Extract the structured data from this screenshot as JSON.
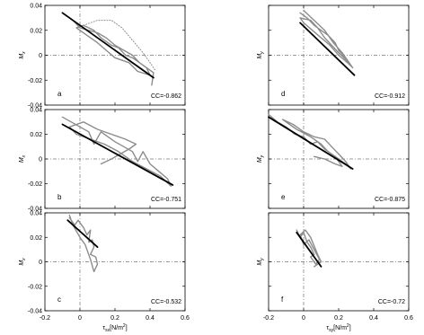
{
  "chart_data": [
    {
      "type": "line",
      "panel": "a",
      "cc_label": "CC=-0.862",
      "xlim": [
        -0.2,
        0.6
      ],
      "ylim": [
        -0.04,
        0.04
      ],
      "ylabel": "M_x",
      "ylabel_main": "M",
      "ylabel_sub": "x",
      "xticks": [],
      "yticks": [
        "-0.04",
        "-0.02",
        "0",
        "0.02",
        "0.04"
      ],
      "series": [
        {
          "role": "observed",
          "style": "solid",
          "points": [
            [
              -0.08,
              0.032
            ],
            [
              -0.04,
              0.028
            ],
            [
              0.0,
              0.022
            ],
            [
              0.05,
              0.02
            ],
            [
              0.1,
              0.018
            ],
            [
              0.15,
              0.014
            ],
            [
              0.2,
              0.008
            ],
            [
              0.25,
              0.004
            ],
            [
              0.3,
              0.0
            ],
            [
              0.34,
              -0.006
            ],
            [
              0.38,
              -0.01
            ],
            [
              0.4,
              -0.016
            ],
            [
              0.33,
              -0.013
            ],
            [
              0.28,
              -0.006
            ],
            [
              0.2,
              -0.002
            ],
            [
              0.15,
              0.004
            ],
            [
              0.1,
              0.01
            ],
            [
              0.04,
              0.016
            ],
            [
              -0.02,
              0.022
            ],
            [
              0.02,
              0.024
            ],
            [
              0.08,
              0.02
            ],
            [
              0.12,
              0.014
            ],
            [
              0.18,
              0.008
            ],
            [
              0.22,
              0.006
            ],
            [
              0.26,
              0.0
            ],
            [
              0.3,
              -0.002
            ],
            [
              0.36,
              -0.008
            ],
            [
              0.42,
              -0.014
            ],
            [
              0.41,
              -0.024
            ]
          ]
        },
        {
          "role": "observed-dotted",
          "style": "dotted",
          "points": [
            [
              0.02,
              0.024
            ],
            [
              0.1,
              0.028
            ],
            [
              0.18,
              0.028
            ],
            [
              0.24,
              0.022
            ],
            [
              0.3,
              0.012
            ],
            [
              0.36,
              0.002
            ],
            [
              0.4,
              -0.006
            ],
            [
              0.43,
              -0.012
            ]
          ]
        },
        {
          "role": "fit",
          "style": "thick",
          "points": [
            [
              -0.1,
              0.034
            ],
            [
              0.42,
              -0.018
            ]
          ]
        }
      ]
    },
    {
      "type": "line",
      "panel": "b",
      "cc_label": "CC=-0.751",
      "xlim": [
        -0.2,
        0.6
      ],
      "ylim": [
        -0.04,
        0.04
      ],
      "ylabel": "M_x",
      "ylabel_main": "M",
      "ylabel_sub": "x",
      "xticks": [],
      "yticks": [
        "-0.04",
        "-0.02",
        "0",
        "0.02",
        "0.04"
      ],
      "series": [
        {
          "role": "observed",
          "style": "solid",
          "points": [
            [
              -0.1,
              0.034
            ],
            [
              -0.05,
              0.03
            ],
            [
              0.0,
              0.026
            ],
            [
              0.05,
              0.022
            ],
            [
              0.08,
              0.012
            ],
            [
              0.12,
              0.022
            ],
            [
              0.16,
              0.018
            ],
            [
              0.2,
              0.014
            ],
            [
              0.25,
              0.01
            ],
            [
              0.3,
              0.006
            ],
            [
              0.33,
              -0.002
            ],
            [
              0.36,
              0.006
            ],
            [
              0.4,
              -0.004
            ],
            [
              0.45,
              -0.01
            ],
            [
              0.5,
              -0.016
            ],
            [
              0.52,
              -0.022
            ],
            [
              0.46,
              -0.014
            ],
            [
              0.38,
              -0.008
            ],
            [
              0.3,
              -0.002
            ],
            [
              0.22,
              0.006
            ],
            [
              0.14,
              0.012
            ],
            [
              0.06,
              0.016
            ],
            [
              -0.02,
              0.02
            ],
            [
              -0.06,
              0.026
            ],
            [
              0.02,
              0.03
            ],
            [
              0.1,
              0.024
            ],
            [
              0.18,
              0.02
            ],
            [
              0.26,
              0.016
            ],
            [
              0.32,
              0.012
            ],
            [
              0.28,
              0.008
            ],
            [
              0.18,
              0.0
            ],
            [
              0.12,
              -0.004
            ]
          ]
        },
        {
          "role": "fit",
          "style": "thick",
          "points": [
            [
              -0.1,
              0.028
            ],
            [
              0.53,
              -0.021
            ]
          ]
        }
      ]
    },
    {
      "type": "line",
      "panel": "c",
      "cc_label": "CC=-0.532",
      "xlim": [
        -0.2,
        0.6
      ],
      "ylim": [
        -0.04,
        0.04
      ],
      "ylabel": "M_x",
      "ylabel_main": "M",
      "ylabel_sub": "x",
      "xlabel_main": "τ",
      "xlabel_sub": "sx",
      "xlabel_unit": "[N/m",
      "xlabel_sup": "2",
      "xlabel_end": "]",
      "xticks": [
        "-0.2",
        "0",
        "0.2",
        "0.4",
        "0.6"
      ],
      "yticks": [
        "-0.04",
        "-0.02",
        "0",
        "0.02",
        "0.04"
      ],
      "series": [
        {
          "role": "observed",
          "style": "solid",
          "points": [
            [
              -0.06,
              0.036
            ],
            [
              -0.03,
              0.03
            ],
            [
              -0.01,
              0.034
            ],
            [
              0.02,
              0.028
            ],
            [
              0.04,
              0.022
            ],
            [
              0.06,
              0.026
            ],
            [
              0.05,
              0.016
            ],
            [
              0.07,
              0.018
            ],
            [
              0.08,
              0.012
            ],
            [
              0.06,
              0.006
            ],
            [
              0.09,
              0.004
            ],
            [
              0.1,
              -0.002
            ],
            [
              0.08,
              -0.008
            ],
            [
              0.06,
              0.002
            ],
            [
              0.03,
              0.014
            ],
            [
              0.0,
              0.02
            ],
            [
              -0.04,
              0.03
            ],
            [
              -0.06,
              0.038
            ]
          ]
        },
        {
          "role": "fit",
          "style": "thick",
          "points": [
            [
              -0.07,
              0.034
            ],
            [
              0.1,
              0.012
            ]
          ]
        }
      ]
    },
    {
      "type": "line",
      "panel": "d",
      "cc_label": "CC=-0.912",
      "xlim": [
        -0.2,
        0.6
      ],
      "ylim": [
        -0.04,
        0.04
      ],
      "ylabel": "M_y",
      "ylabel_main": "M",
      "ylabel_sub": "y",
      "xticks": [],
      "yticks": [],
      "series": [
        {
          "role": "observed",
          "style": "solid",
          "points": [
            [
              -0.02,
              0.034
            ],
            [
              0.02,
              0.03
            ],
            [
              0.06,
              0.024
            ],
            [
              0.1,
              0.02
            ],
            [
              0.14,
              0.016
            ],
            [
              0.18,
              0.01
            ],
            [
              0.2,
              0.004
            ],
            [
              0.24,
              -0.002
            ],
            [
              0.28,
              -0.01
            ],
            [
              0.25,
              -0.006
            ],
            [
              0.2,
              0.0
            ],
            [
              0.15,
              0.008
            ],
            [
              0.1,
              0.014
            ],
            [
              0.05,
              0.02
            ],
            [
              0.0,
              0.026
            ],
            [
              -0.02,
              0.03
            ],
            [
              0.04,
              0.028
            ],
            [
              0.08,
              0.022
            ],
            [
              0.12,
              0.014
            ],
            [
              0.16,
              0.008
            ],
            [
              0.2,
              0.002
            ],
            [
              0.26,
              -0.006
            ],
            [
              0.22,
              0.002
            ],
            [
              0.17,
              0.01
            ],
            [
              0.12,
              0.02
            ],
            [
              0.06,
              0.028
            ],
            [
              0.0,
              0.036
            ]
          ]
        },
        {
          "role": "fit",
          "style": "thick",
          "points": [
            [
              -0.02,
              0.026
            ],
            [
              0.29,
              -0.016
            ]
          ]
        }
      ]
    },
    {
      "type": "line",
      "panel": "e",
      "cc_label": "CC=-0.875",
      "xlim": [
        -0.2,
        0.6
      ],
      "ylim": [
        -0.04,
        0.04
      ],
      "ylabel": "M_y",
      "ylabel_main": "M",
      "ylabel_sub": "y",
      "xticks": [],
      "yticks": [],
      "series": [
        {
          "role": "observed",
          "style": "solid",
          "points": [
            [
              -0.2,
              0.036
            ],
            [
              -0.15,
              0.03
            ],
            [
              -0.1,
              0.026
            ],
            [
              -0.05,
              0.02
            ],
            [
              0.0,
              0.018
            ],
            [
              0.04,
              0.012
            ],
            [
              0.08,
              0.014
            ],
            [
              0.12,
              0.008
            ],
            [
              0.16,
              0.004
            ],
            [
              0.2,
              0.0
            ],
            [
              0.24,
              -0.004
            ],
            [
              0.27,
              -0.008
            ],
            [
              0.24,
              -0.002
            ],
            [
              0.2,
              0.004
            ],
            [
              0.16,
              0.01
            ],
            [
              0.12,
              0.016
            ],
            [
              0.06,
              0.018
            ],
            [
              0.0,
              0.022
            ],
            [
              -0.06,
              0.028
            ],
            [
              -0.12,
              0.032
            ],
            [
              -0.04,
              0.024
            ],
            [
              0.04,
              0.018
            ],
            [
              0.1,
              0.012
            ],
            [
              0.14,
              0.006
            ],
            [
              0.18,
              0.002
            ],
            [
              0.22,
              -0.006
            ],
            [
              0.18,
              -0.004
            ],
            [
              0.12,
              0.0
            ],
            [
              0.06,
              0.002
            ]
          ]
        },
        {
          "role": "fit",
          "style": "thick",
          "points": [
            [
              -0.2,
              0.034
            ],
            [
              0.28,
              -0.008
            ]
          ]
        }
      ]
    },
    {
      "type": "line",
      "panel": "f",
      "cc_label": "CC=-0.72",
      "xlim": [
        -0.2,
        0.6
      ],
      "ylim": [
        -0.04,
        0.04
      ],
      "ylabel": "M_y",
      "ylabel_main": "M",
      "ylabel_sub": "y",
      "xlabel_main": "τ",
      "xlabel_sub": "sy",
      "xlabel_unit": "[N/m",
      "xlabel_sup": "2",
      "xlabel_end": "]",
      "xticks": [
        "-0.2",
        "0",
        "0.2",
        "0.4",
        "0.6"
      ],
      "yticks": [],
      "series": [
        {
          "role": "observed",
          "style": "solid",
          "points": [
            [
              -0.04,
              0.026
            ],
            [
              -0.02,
              0.02
            ],
            [
              0.0,
              0.024
            ],
            [
              0.02,
              0.016
            ],
            [
              0.04,
              0.012
            ],
            [
              0.06,
              0.006
            ],
            [
              0.04,
              0.004
            ],
            [
              0.07,
              -0.002
            ],
            [
              0.09,
              0.002
            ],
            [
              0.06,
              0.01
            ],
            [
              0.03,
              0.018
            ],
            [
              0.0,
              0.014
            ],
            [
              -0.02,
              0.022
            ],
            [
              0.01,
              0.026
            ],
            [
              0.04,
              0.02
            ],
            [
              0.08,
              0.006
            ],
            [
              0.1,
              0.0
            ],
            [
              0.06,
              -0.004
            ]
          ]
        },
        {
          "role": "fit",
          "style": "thick",
          "points": [
            [
              -0.04,
              0.024
            ],
            [
              0.1,
              -0.004
            ]
          ]
        }
      ]
    }
  ]
}
